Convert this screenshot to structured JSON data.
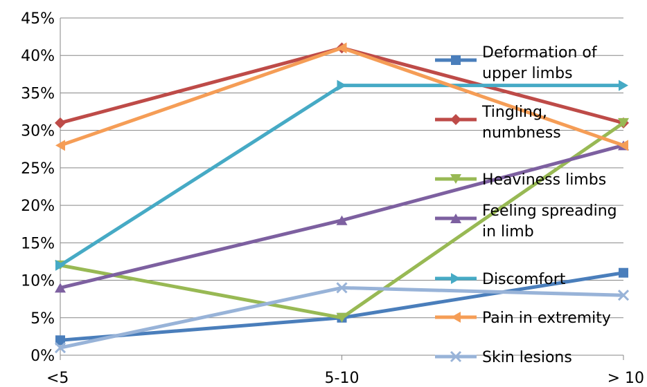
{
  "chart_data": {
    "type": "line",
    "title": "",
    "xlabel": "",
    "ylabel": "",
    "categories": [
      "<5",
      "5-10",
      "> 10"
    ],
    "ylim": [
      0,
      0.45
    ],
    "y_ticks": [
      0,
      0.05,
      0.1,
      0.15,
      0.2,
      0.25,
      0.3,
      0.35,
      0.4,
      0.45
    ],
    "y_tick_labels": [
      "0%",
      "5%",
      "10%",
      "15%",
      "20%",
      "25%",
      "30%",
      "35%",
      "40%",
      "45%"
    ],
    "grid": true,
    "legend_position": "right, overlapping plot",
    "series": [
      {
        "name": "Deformation of upper limbs",
        "values": [
          0.02,
          0.05,
          0.11
        ],
        "color": "#4A7EBB",
        "marker": "square",
        "legend_lines": [
          "Deformation of",
          "upper limbs"
        ]
      },
      {
        "name": "Tingling, numbness",
        "values": [
          0.31,
          0.41,
          0.31
        ],
        "color": "#BE4B48",
        "marker": "diamond",
        "legend_lines": [
          "Tingling,",
          "numbness"
        ]
      },
      {
        "name": "Heaviness limbs",
        "values": [
          0.12,
          0.05,
          0.31
        ],
        "color": "#98B954",
        "marker": "triangle-down",
        "legend_lines": [
          "Heaviness limbs"
        ]
      },
      {
        "name": "Feeling spreading in limb",
        "values": [
          0.09,
          0.18,
          0.28
        ],
        "color": "#7D60A0",
        "marker": "triangle-up",
        "legend_lines": [
          "Feeling spreading",
          "in limb"
        ]
      },
      {
        "name": "Discomfort",
        "values": [
          0.12,
          0.36,
          0.36
        ],
        "color": "#46AAC5",
        "marker": "triangle-right",
        "legend_lines": [
          "Discomfort"
        ]
      },
      {
        "name": "Pain in extremity",
        "values": [
          0.28,
          0.41,
          0.28
        ],
        "color": "#F59D56",
        "marker": "triangle-left",
        "legend_lines": [
          "Pain in extremity"
        ]
      },
      {
        "name": "Skin lesions",
        "values": [
          0.01,
          0.09,
          0.08
        ],
        "color": "#98B3D8",
        "marker": "x",
        "legend_lines": [
          "Skin lesions"
        ]
      }
    ]
  }
}
